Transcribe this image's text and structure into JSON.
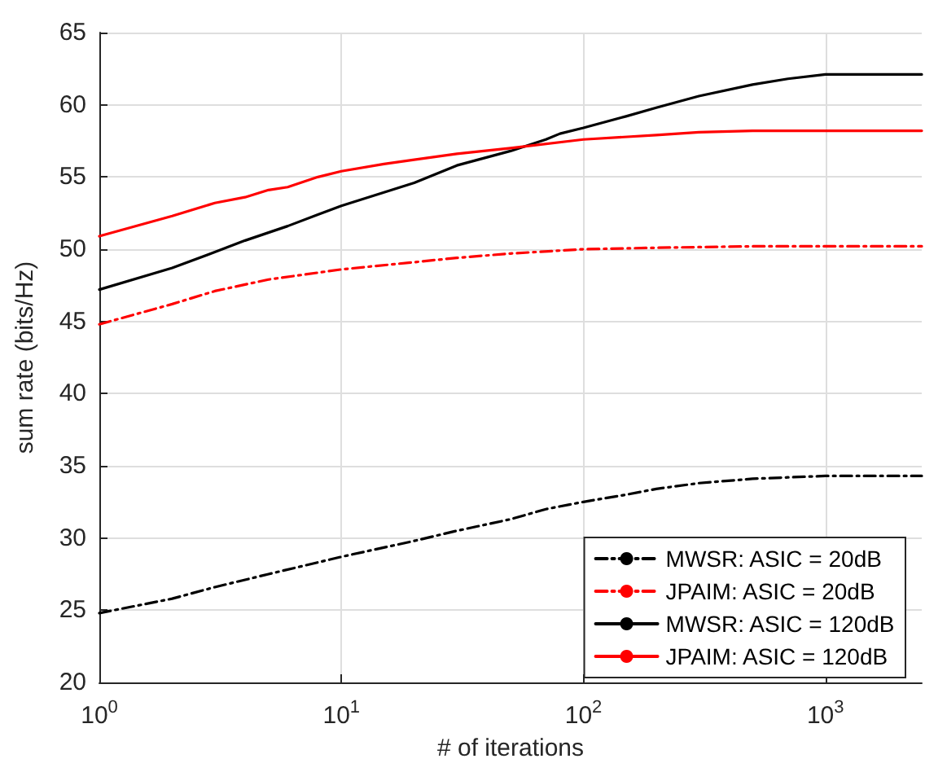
{
  "chart_data": {
    "type": "line",
    "xlabel": "# of iterations",
    "ylabel": "sum rate (bits/Hz)",
    "log": "x",
    "grid": true,
    "legend": "bottom right",
    "marker": "none",
    "xlim": [
      1,
      2500
    ],
    "xticks": [
      {
        "value": 1,
        "label": "10$^{0}$"
      },
      {
        "value": 10,
        "label": "10$^{1}$"
      },
      {
        "value": 100,
        "label": "10$^{2}$"
      },
      {
        "value": 1000,
        "label": "10$^{3}$"
      }
    ],
    "ylim": [
      20,
      65
    ],
    "yticks": [
      20,
      25,
      30,
      35,
      40,
      45,
      50,
      55,
      60,
      65
    ],
    "series": [
      {
        "name": "MWSR: ASIC = 20dB",
        "color": "#000000",
        "line_style": "dashed",
        "x": [
          1,
          2,
          3,
          5,
          10,
          20,
          30,
          50,
          70,
          100,
          150,
          200,
          300,
          500,
          700,
          1000,
          2500
        ],
        "values": [
          24.8,
          25.8,
          26.6,
          27.5,
          28.7,
          29.8,
          30.5,
          31.3,
          32,
          32.5,
          33,
          33.4,
          33.8,
          34.1,
          34.2,
          34.3,
          34.3
        ]
      },
      {
        "name": "JPAIM: ASIC = 20dB",
        "color": "#ff0000",
        "line_style": "dashed",
        "x": [
          1,
          2,
          3,
          5,
          10,
          20,
          30,
          50,
          100,
          200,
          500,
          2500
        ],
        "values": [
          44.8,
          46.2,
          47.1,
          47.9,
          48.6,
          49.1,
          49.4,
          49.7,
          50,
          50.1,
          50.2,
          50.2
        ]
      },
      {
        "name": "MWSR: ASIC = 120dB",
        "color": "#000000",
        "line_style": "solid",
        "x": [
          1,
          2,
          3,
          4,
          6,
          8,
          10,
          20,
          30,
          50,
          70,
          80,
          100,
          150,
          200,
          300,
          500,
          700,
          1000,
          2500
        ],
        "values": [
          47.2,
          48.7,
          49.8,
          50.6,
          51.6,
          52.4,
          53,
          54.6,
          55.8,
          56.8,
          57.6,
          58,
          58.4,
          59.2,
          59.8,
          60.6,
          61.4,
          61.8,
          62.1,
          62.1
        ]
      },
      {
        "name": "JPAIM: ASIC = 120dB",
        "color": "#ff0000",
        "line_style": "solid",
        "x": [
          1,
          2,
          3,
          4,
          5,
          6,
          8,
          10,
          15,
          20,
          30,
          50,
          100,
          200,
          300,
          500,
          2500
        ],
        "values": [
          50.9,
          52.3,
          53.2,
          53.6,
          54.1,
          54.3,
          55,
          55.4,
          55.9,
          56.2,
          56.6,
          57,
          57.6,
          57.9,
          58.1,
          58.2,
          58.2
        ]
      }
    ]
  }
}
